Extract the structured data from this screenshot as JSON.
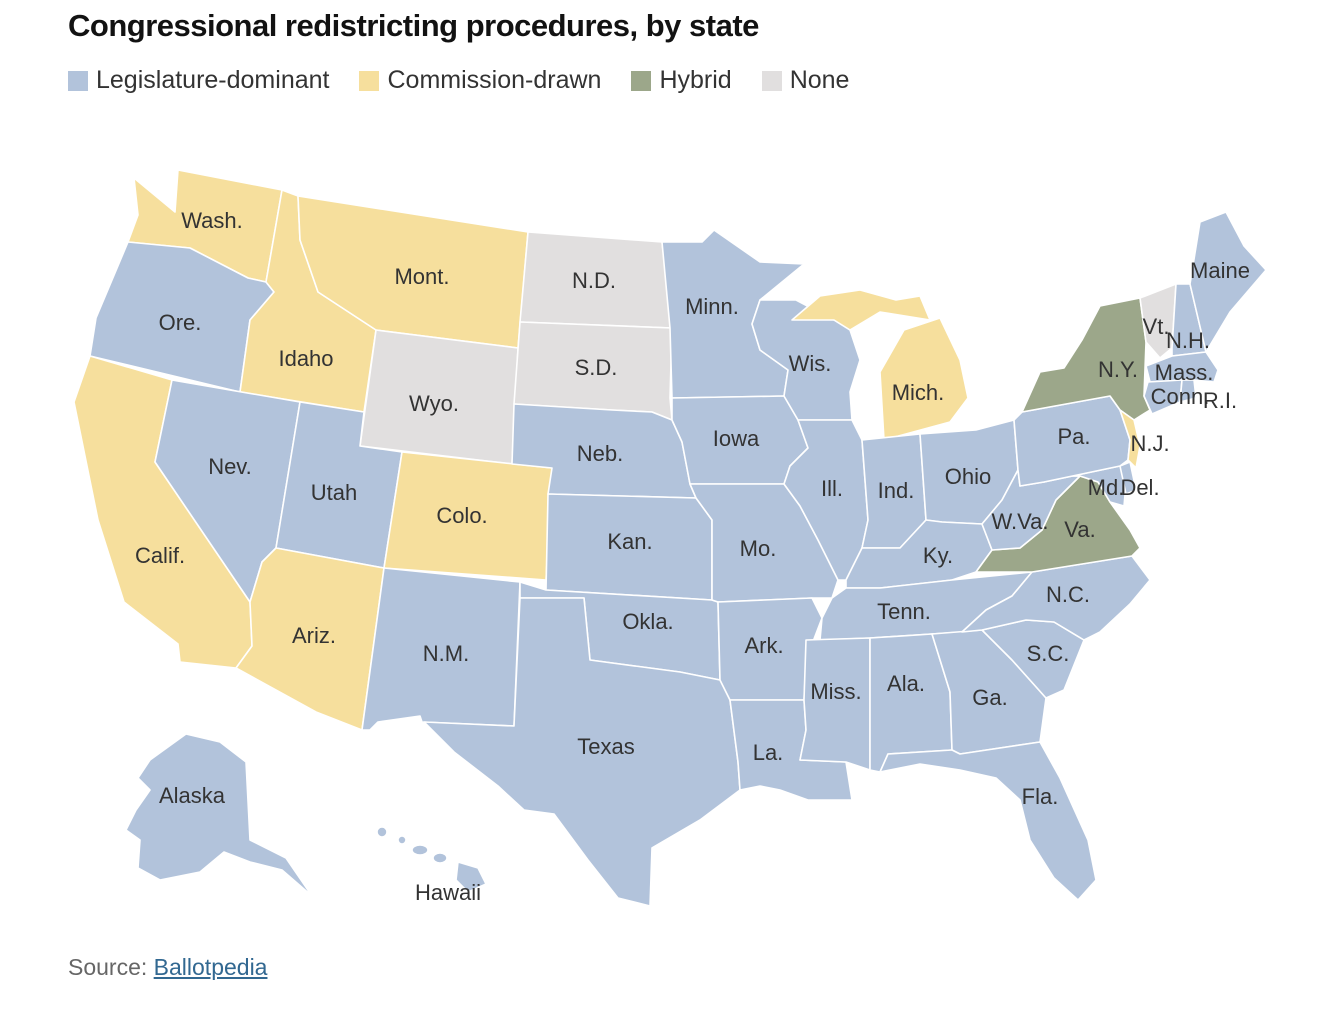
{
  "title": "Congressional redistricting procedures, by state",
  "legend": [
    {
      "label": "Legislature-dominant",
      "color": "#b2c3db",
      "key": "L"
    },
    {
      "label": "Commission-drawn",
      "color": "#f6df9d",
      "key": "C"
    },
    {
      "label": "Hybrid",
      "color": "#9ca78a",
      "key": "H"
    },
    {
      "label": "None",
      "color": "#e1dfdf",
      "key": "N"
    }
  ],
  "states": {
    "wa": {
      "label": "Wash.",
      "cat": "C"
    },
    "or": {
      "label": "Ore.",
      "cat": "L"
    },
    "ca": {
      "label": "Calif.",
      "cat": "C"
    },
    "id": {
      "label": "Idaho",
      "cat": "C"
    },
    "nv": {
      "label": "Nev.",
      "cat": "L"
    },
    "mt": {
      "label": "Mont.",
      "cat": "C"
    },
    "wy": {
      "label": "Wyo.",
      "cat": "N"
    },
    "ut": {
      "label": "Utah",
      "cat": "L"
    },
    "az": {
      "label": "Ariz.",
      "cat": "C"
    },
    "co": {
      "label": "Colo.",
      "cat": "C"
    },
    "nm": {
      "label": "N.M.",
      "cat": "L"
    },
    "nd": {
      "label": "N.D.",
      "cat": "N"
    },
    "sd": {
      "label": "S.D.",
      "cat": "N"
    },
    "ne": {
      "label": "Neb.",
      "cat": "L"
    },
    "ks": {
      "label": "Kan.",
      "cat": "L"
    },
    "ok": {
      "label": "Okla.",
      "cat": "L"
    },
    "tx": {
      "label": "Texas",
      "cat": "L"
    },
    "mn": {
      "label": "Minn.",
      "cat": "L"
    },
    "ia": {
      "label": "Iowa",
      "cat": "L"
    },
    "mo": {
      "label": "Mo.",
      "cat": "L"
    },
    "ar": {
      "label": "Ark.",
      "cat": "L"
    },
    "la": {
      "label": "La.",
      "cat": "L"
    },
    "wi": {
      "label": "Wis.",
      "cat": "L"
    },
    "il": {
      "label": "Ill.",
      "cat": "L"
    },
    "mi": {
      "label": "Mich.",
      "cat": "C"
    },
    "in": {
      "label": "Ind.",
      "cat": "L"
    },
    "oh": {
      "label": "Ohio",
      "cat": "L"
    },
    "ky": {
      "label": "Ky.",
      "cat": "L"
    },
    "tn": {
      "label": "Tenn.",
      "cat": "L"
    },
    "ms": {
      "label": "Miss.",
      "cat": "L"
    },
    "al": {
      "label": "Ala.",
      "cat": "L"
    },
    "ga": {
      "label": "Ga.",
      "cat": "L"
    },
    "fl": {
      "label": "Fla.",
      "cat": "L"
    },
    "sc": {
      "label": "S.C.",
      "cat": "L"
    },
    "nc": {
      "label": "N.C.",
      "cat": "L"
    },
    "va": {
      "label": "Va.",
      "cat": "H"
    },
    "wv": {
      "label": "W.Va.",
      "cat": "L"
    },
    "pa": {
      "label": "Pa.",
      "cat": "L"
    },
    "ny": {
      "label": "N.Y.",
      "cat": "H"
    },
    "nj": {
      "label": "N.J.",
      "cat": "C"
    },
    "md": {
      "label": "Md.",
      "cat": "L"
    },
    "de": {
      "label": "Del.",
      "cat": "L"
    },
    "ct": {
      "label": "Conn.",
      "cat": "L"
    },
    "ri": {
      "label": "R.I.",
      "cat": "L"
    },
    "ma": {
      "label": "Mass.",
      "cat": "L"
    },
    "vt": {
      "label": "Vt.",
      "cat": "N"
    },
    "nh": {
      "label": "N.H.",
      "cat": "L"
    },
    "me": {
      "label": "Maine",
      "cat": "L"
    },
    "ak": {
      "label": "Alaska",
      "cat": "L"
    },
    "hi": {
      "label": "Hawaii",
      "cat": "L"
    }
  },
  "source": {
    "prefix": "Source: ",
    "link_text": "Ballotpedia"
  }
}
